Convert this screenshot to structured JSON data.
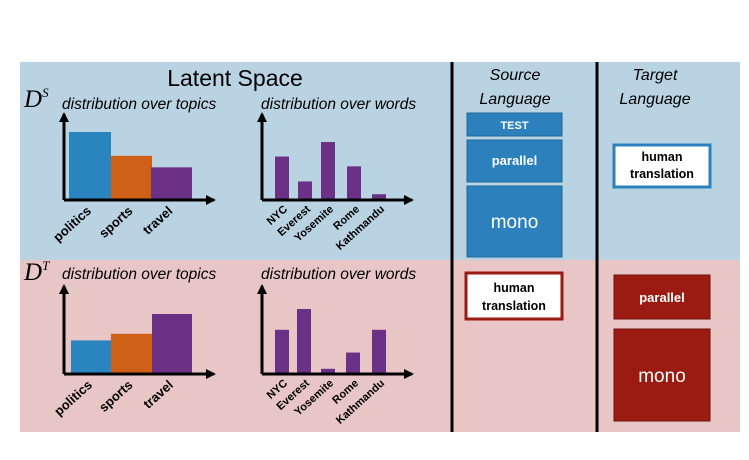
{
  "latent_space_title": "Latent Space",
  "source": {
    "symbol": "D",
    "superscript": "S",
    "topics_label": "distribution over topics",
    "words_label": "distribution over words"
  },
  "target_row": {
    "symbol": "D",
    "superscript": "T",
    "topics_label": "distribution over topics",
    "words_label": "distribution over words"
  },
  "columns": {
    "source_language": [
      "Source",
      "Language"
    ],
    "target_language": [
      "Target",
      "Language"
    ]
  },
  "boxes": {
    "test": "TEST",
    "source_parallel": "parallel",
    "source_mono": "mono",
    "source_human_translation": [
      "human",
      "translation"
    ],
    "target_human_translation": [
      "human",
      "translation"
    ],
    "target_parallel": "parallel",
    "target_mono": "mono"
  },
  "colors": {
    "top_band": "#b9d3e3",
    "bottom_band": "#e8c6c5",
    "blue_box": "#2c81bd",
    "red_box": "#9b1a11",
    "bar_blue": "#2a84bd",
    "bar_orange": "#cf6018",
    "bar_purple": "#6b3187"
  },
  "chart_data": [
    {
      "type": "bar",
      "categories": [
        "politics",
        "sports",
        "travel"
      ],
      "values": [
        1.0,
        0.65,
        0.48
      ],
      "colors": [
        "#2a84bd",
        "#cf6018",
        "#6b3187"
      ]
    },
    {
      "type": "bar",
      "categories": [
        "NYC",
        "Everest",
        "Yosemite",
        "Rome",
        "Kathmandu"
      ],
      "values": [
        0.75,
        0.32,
        1.0,
        0.58,
        0.1
      ]
    },
    {
      "type": "bar",
      "categories": [
        "politics",
        "sports",
        "travel"
      ],
      "values": [
        0.56,
        0.67,
        1.0
      ],
      "colors": [
        "#2a84bd",
        "#cf6018",
        "#6b3187"
      ]
    },
    {
      "type": "bar",
      "categories": [
        "NYC",
        "Everest",
        "Yosemite",
        "Rome",
        "Kathmandu"
      ],
      "values": [
        0.68,
        1.0,
        0.08,
        0.33,
        0.68
      ]
    }
  ]
}
